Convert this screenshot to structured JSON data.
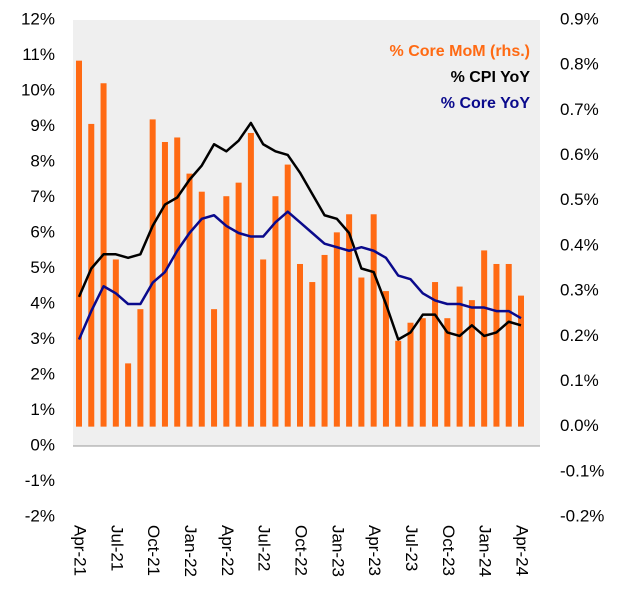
{
  "chart_data": {
    "type": "bar_line",
    "categories": [
      "Apr-21",
      null,
      null,
      "Jul-21",
      null,
      null,
      "Oct-21",
      null,
      null,
      "Jan-22",
      null,
      null,
      "Apr-22",
      null,
      null,
      "Jul-22",
      null,
      null,
      "Oct-22",
      null,
      null,
      "Jan-23",
      null,
      null,
      "Apr-23",
      null,
      null,
      "Jul-23",
      null,
      null,
      "Oct-23",
      null,
      null,
      "Jan-24",
      null,
      null,
      "Apr-24"
    ],
    "series": [
      {
        "name": "% Core MoM (rhs.)",
        "color": "#ff6a13",
        "axis": "y2",
        "kind": "bar",
        "values": [
          0.81,
          0.67,
          0.76,
          0.37,
          0.14,
          0.26,
          0.68,
          0.63,
          0.64,
          0.56,
          0.52,
          0.26,
          0.51,
          0.54,
          0.65,
          0.37,
          0.51,
          0.58,
          0.36,
          0.32,
          0.38,
          0.43,
          0.47,
          0.33,
          0.47,
          0.3,
          0.19,
          0.23,
          0.24,
          0.32,
          0.24,
          0.31,
          0.28,
          0.39,
          0.36,
          0.36,
          0.29
        ]
      },
      {
        "name": "% CPI YoY",
        "color": "#000000",
        "kind": "line",
        "values": [
          4.2,
          5.0,
          5.4,
          5.4,
          5.3,
          5.4,
          6.2,
          6.8,
          7.0,
          7.5,
          7.9,
          8.5,
          8.3,
          8.6,
          9.1,
          8.5,
          8.3,
          8.2,
          7.7,
          7.1,
          6.5,
          6.4,
          6.0,
          5.0,
          4.9,
          4.0,
          3.0,
          3.2,
          3.7,
          3.7,
          3.2,
          3.1,
          3.4,
          3.1,
          3.2,
          3.5,
          3.4
        ]
      },
      {
        "name": "% Core YoY",
        "color": "#0a0a8c",
        "kind": "line",
        "values": [
          3.0,
          3.8,
          4.5,
          4.3,
          4.0,
          4.0,
          4.6,
          4.9,
          5.5,
          6.0,
          6.4,
          6.5,
          6.2,
          6.0,
          5.9,
          5.9,
          6.3,
          6.6,
          6.3,
          6.0,
          5.7,
          5.6,
          5.5,
          5.6,
          5.5,
          5.3,
          4.8,
          4.7,
          4.3,
          4.1,
          4.0,
          4.0,
          3.9,
          3.9,
          3.8,
          3.8,
          3.6
        ]
      }
    ],
    "ylim": [
      -2,
      12
    ],
    "yticks": [
      {
        "value": -2,
        "label": "-2%"
      },
      {
        "value": -1,
        "label": "-1%"
      },
      {
        "value": 0,
        "label": "0%"
      },
      {
        "value": 1,
        "label": "1%"
      },
      {
        "value": 2,
        "label": "2%"
      },
      {
        "value": 3,
        "label": "3%"
      },
      {
        "value": 4,
        "label": "4%"
      },
      {
        "value": 5,
        "label": "5%"
      },
      {
        "value": 6,
        "label": "6%"
      },
      {
        "value": 7,
        "label": "7%"
      },
      {
        "value": 8,
        "label": "8%"
      },
      {
        "value": 9,
        "label": "9%"
      },
      {
        "value": 10,
        "label": "10%"
      },
      {
        "value": 11,
        "label": "11%"
      },
      {
        "value": 12,
        "label": "12%"
      }
    ],
    "y2lim": [
      -0.2,
      0.9
    ],
    "y2ticks": [
      {
        "value": -0.2,
        "label": "-0.2%"
      },
      {
        "value": -0.1,
        "label": "-0.1%"
      },
      {
        "value": 0.0,
        "label": "0.0%"
      },
      {
        "value": 0.1,
        "label": "0.1%"
      },
      {
        "value": 0.2,
        "label": "0.2%"
      },
      {
        "value": 0.3,
        "label": "0.3%"
      },
      {
        "value": 0.4,
        "label": "0.4%"
      },
      {
        "value": 0.5,
        "label": "0.5%"
      },
      {
        "value": 0.6,
        "label": "0.6%"
      },
      {
        "value": 0.7,
        "label": "0.7%"
      },
      {
        "value": 0.8,
        "label": "0.8%"
      },
      {
        "value": 0.9,
        "label": "0.9%"
      }
    ],
    "background": "#efefef"
  }
}
